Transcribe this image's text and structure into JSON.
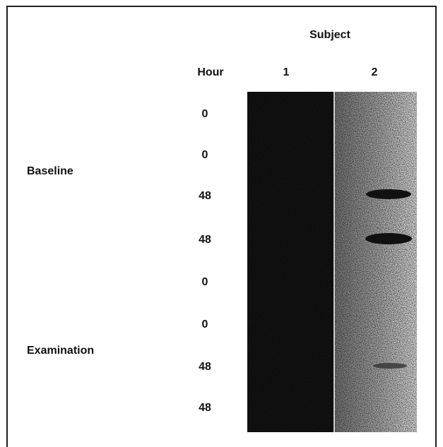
{
  "figure": {
    "header": "Subject",
    "hour_label": "Hour",
    "subjects": [
      "1",
      "2"
    ],
    "hours": [
      0,
      0,
      48,
      48,
      0,
      0,
      48,
      48
    ],
    "groups": [
      "Baseline",
      "Examination"
    ]
  }
}
